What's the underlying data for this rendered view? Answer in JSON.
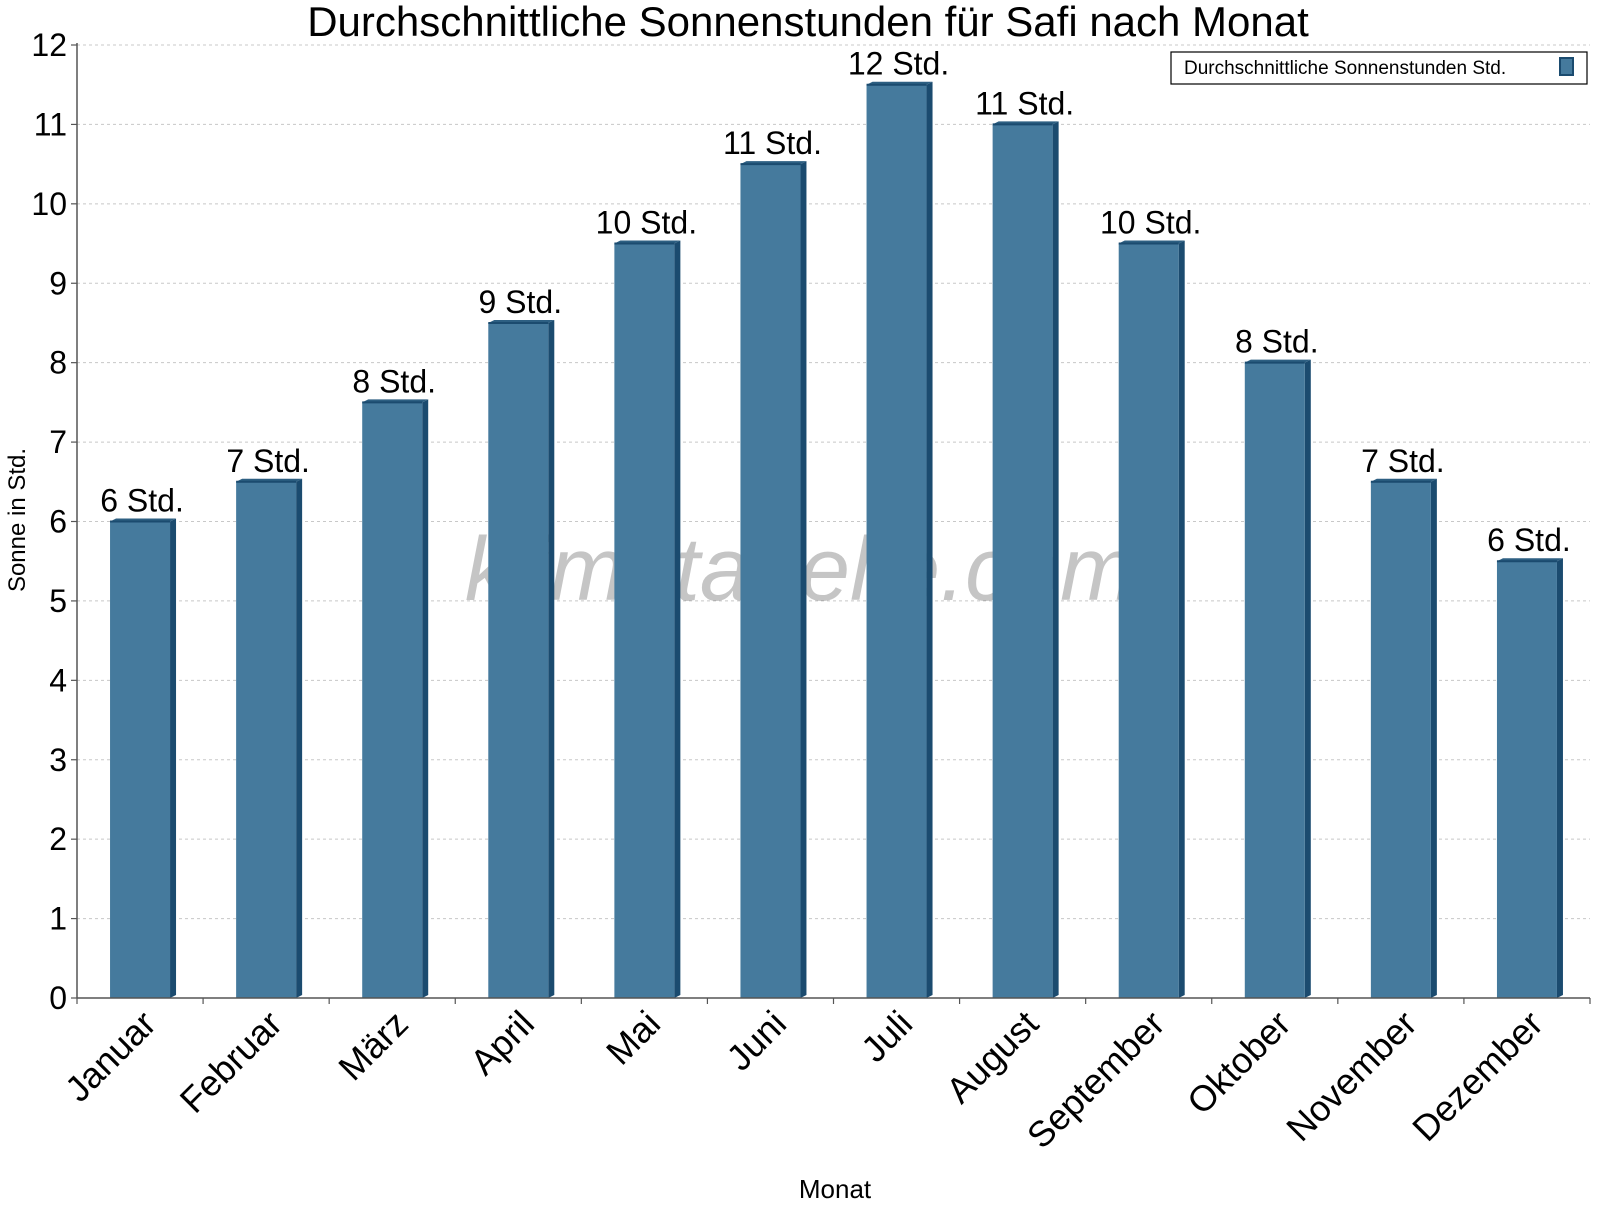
{
  "chart_data": {
    "type": "bar",
    "title": "Durchschnittliche Sonnenstunden für Safi nach Monat",
    "xlabel": "Monat",
    "ylabel": "Sonne in Std.",
    "categories": [
      "Januar",
      "Februar",
      "März",
      "April",
      "Mai",
      "Juni",
      "Juli",
      "August",
      "September",
      "Oktober",
      "November",
      "Dezember"
    ],
    "series": [
      {
        "name": "Durchschnittliche Sonnenstunden Std.",
        "values": [
          6,
          6.5,
          7.5,
          8.5,
          9.5,
          10.5,
          11.5,
          11,
          9.5,
          8,
          6.5,
          5.5
        ],
        "labels": [
          "6 Std.",
          "7 Std.",
          "8 Std.",
          "9 Std.",
          "10 Std.",
          "11 Std.",
          "12 Std.",
          "11 Std.",
          "10 Std.",
          "8 Std.",
          "7 Std.",
          "6 Std."
        ]
      }
    ],
    "ylim": [
      0,
      12
    ],
    "yticks": [
      0,
      1,
      2,
      3,
      4,
      5,
      6,
      7,
      8,
      9,
      10,
      11,
      12
    ],
    "grid": true,
    "legend_position": "top-right",
    "watermark": "klimatabelle.com",
    "colors": {
      "bar_front": "#457a9d",
      "bar_side": "#1b4b6f",
      "bar_top": "#2d5f82",
      "grid": "#c8c8c8",
      "axis": "#555555",
      "axis_title": "#4d5a66"
    }
  }
}
